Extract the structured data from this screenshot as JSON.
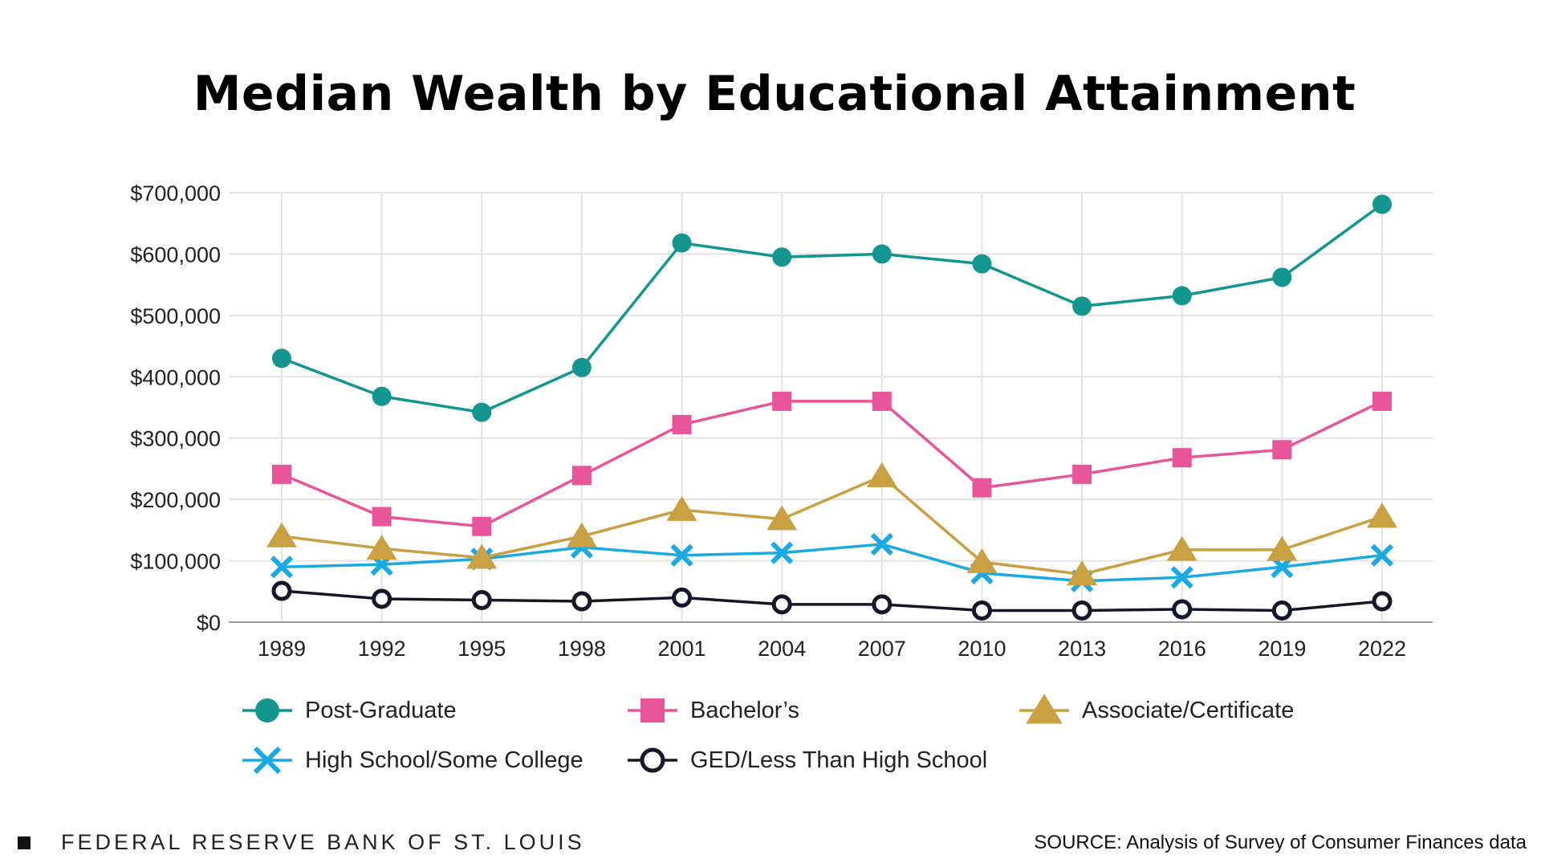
{
  "chart_data": {
    "type": "line",
    "title": "Median Wealth by Educational Attainment",
    "x": [
      "1989",
      "1992",
      "1995",
      "1998",
      "2001",
      "2004",
      "2007",
      "2010",
      "2013",
      "2016",
      "2019",
      "2022"
    ],
    "ylim": [
      0,
      700000
    ],
    "yticks": [
      "$0",
      "$100,000",
      "$200,000",
      "$300,000",
      "$400,000",
      "$500,000",
      "$600,000",
      "$700,000"
    ],
    "grid": true,
    "legend_position": "bottom",
    "series": [
      {
        "name": "Post-Graduate",
        "color": "#13968f",
        "marker": "circle",
        "values": [
          430000,
          368000,
          342000,
          415000,
          618000,
          595000,
          600000,
          584000,
          515000,
          532000,
          562000,
          681000
        ]
      },
      {
        "name": "Bachelor’s",
        "color": "#e8559a",
        "marker": "square",
        "values": [
          241000,
          172000,
          156000,
          239000,
          322000,
          360000,
          360000,
          219000,
          241000,
          268000,
          281000,
          360000
        ]
      },
      {
        "name": "Associate/Certificate",
        "color": "#c9a042",
        "marker": "triangle",
        "values": [
          140000,
          120000,
          105000,
          140000,
          183000,
          168000,
          238000,
          98000,
          78000,
          118000,
          118000,
          172000
        ]
      },
      {
        "name": "High School/Some College",
        "color": "#1ba9e2",
        "marker": "x",
        "values": [
          90000,
          94000,
          103000,
          122000,
          109000,
          113000,
          127000,
          80000,
          67000,
          73000,
          90000,
          109000
        ]
      },
      {
        "name": "GED/Less Than High School",
        "color": "#16162a",
        "marker": "open-circle",
        "values": [
          51000,
          38000,
          36000,
          34000,
          40000,
          29000,
          29000,
          19000,
          19000,
          21000,
          19000,
          34000
        ]
      }
    ]
  },
  "footer": {
    "org": "FEDERAL RESERVE BANK OF ST. LOUIS",
    "source": "SOURCE: Analysis of Survey of Consumer Finances data"
  }
}
